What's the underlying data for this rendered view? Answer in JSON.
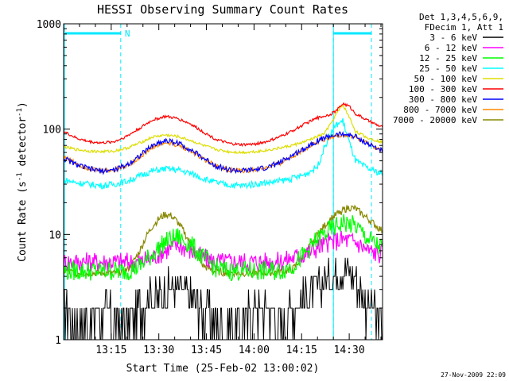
{
  "chart_data": {
    "type": "line",
    "title": "HESSI Observing Summary Count Rates",
    "xlabel": "Start Time (25-Feb-02 13:00:02)",
    "ylabel_main": "Count Rate (s",
    "ylabel_sup1": "-1",
    "ylabel_mid": " detector",
    "ylabel_sup2": "-1",
    "ylabel_end": ")",
    "y_scale": "log",
    "ylim": [
      1,
      1000
    ],
    "xlim_minutes": [
      0,
      100.5
    ],
    "x_ticks": [
      {
        "minute": 15,
        "label": "13:15"
      },
      {
        "minute": 30,
        "label": "13:30"
      },
      {
        "minute": 45,
        "label": "13:45"
      },
      {
        "minute": 60,
        "label": "14:00"
      },
      {
        "minute": 75,
        "label": "14:15"
      },
      {
        "minute": 90,
        "label": "14:30"
      }
    ],
    "y_ticks": [
      {
        "value": 1,
        "label": "1"
      },
      {
        "value": 10,
        "label": "10"
      },
      {
        "value": 100,
        "label": "100"
      },
      {
        "value": 1000,
        "label": "1000"
      }
    ],
    "legend_header": [
      "Det 1,3,4,5,6,9,",
      "FDecim 1, Att 1"
    ],
    "legend_placement": "right, outside plot",
    "series": [
      {
        "name": "3 - 6 keV",
        "color": "#000000",
        "x": [
          0,
          4,
          8,
          12,
          16,
          20,
          24,
          28,
          32,
          36,
          40,
          44,
          48,
          52,
          56,
          60,
          64,
          68,
          72,
          76,
          80,
          84,
          88,
          92,
          96,
          100
        ],
        "y": [
          2,
          1.5,
          1.5,
          2,
          1.5,
          1.5,
          2,
          2.5,
          3,
          3,
          2.5,
          2,
          1.5,
          1.5,
          1.5,
          2,
          2,
          1.5,
          2,
          2.5,
          3,
          4,
          5,
          4,
          2,
          1.5
        ]
      },
      {
        "name": "6 - 12 keV",
        "color": "#ff00ff",
        "x": [
          0,
          4,
          8,
          12,
          16,
          20,
          24,
          28,
          32,
          36,
          40,
          44,
          48,
          52,
          56,
          60,
          64,
          68,
          72,
          76,
          80,
          84,
          88,
          92,
          96,
          100
        ],
        "y": [
          5.5,
          5.5,
          5.5,
          5.5,
          5.5,
          5.5,
          5.5,
          6,
          7,
          8,
          7,
          6,
          5.5,
          5.5,
          5.5,
          5.5,
          5.5,
          5.5,
          6,
          6.5,
          7.5,
          8.5,
          9,
          8.5,
          7,
          6.5
        ]
      },
      {
        "name": "12 - 25 keV",
        "color": "#00ff00",
        "x": [
          0,
          4,
          8,
          12,
          16,
          20,
          24,
          28,
          32,
          36,
          40,
          44,
          48,
          52,
          56,
          60,
          64,
          68,
          72,
          76,
          80,
          84,
          88,
          92,
          96,
          100
        ],
        "y": [
          4.5,
          4.5,
          4.5,
          4.5,
          4.5,
          4.5,
          5,
          6.5,
          8.5,
          9.5,
          8,
          6,
          4.8,
          4.5,
          4.5,
          4.5,
          4.5,
          4.5,
          5,
          6.5,
          9,
          11,
          13,
          12,
          9,
          7.5
        ]
      },
      {
        "name": "25 - 50 keV",
        "color": "#00ffff",
        "x": [
          0,
          4,
          8,
          12,
          16,
          20,
          24,
          28,
          32,
          36,
          40,
          44,
          48,
          52,
          56,
          60,
          64,
          68,
          72,
          76,
          80,
          82,
          84,
          86,
          88,
          90,
          92,
          96,
          100
        ],
        "y": [
          33,
          31,
          30,
          29,
          30,
          32,
          36,
          40,
          42,
          41,
          38,
          34,
          31,
          29.5,
          29,
          30,
          31,
          32,
          34,
          37,
          44,
          65,
          90,
          110,
          120,
          75,
          50,
          42,
          38
        ]
      },
      {
        "name": "50 - 100 keV",
        "color": "#dddd00",
        "x": [
          0,
          4,
          8,
          12,
          16,
          20,
          24,
          28,
          32,
          36,
          40,
          44,
          48,
          52,
          56,
          60,
          64,
          68,
          72,
          76,
          80,
          82,
          84,
          86,
          88,
          90,
          92,
          96,
          100
        ],
        "y": [
          68,
          64,
          62,
          61,
          62,
          66,
          74,
          84,
          88,
          85,
          78,
          70,
          64,
          61,
          60,
          61,
          63,
          66,
          70,
          76,
          85,
          90,
          110,
          140,
          170,
          130,
          95,
          82,
          76
        ]
      },
      {
        "name": "100 - 300 keV",
        "color": "#ff0000",
        "x": [
          0,
          4,
          8,
          12,
          16,
          20,
          24,
          28,
          32,
          36,
          40,
          44,
          48,
          52,
          56,
          60,
          64,
          68,
          72,
          76,
          80,
          84,
          86,
          88,
          90,
          92,
          96,
          100
        ],
        "y": [
          95,
          82,
          76,
          74,
          76,
          86,
          102,
          122,
          132,
          126,
          112,
          94,
          80,
          73,
          71,
          72,
          76,
          84,
          96,
          112,
          128,
          138,
          150,
          175,
          165,
          140,
          120,
          105
        ]
      },
      {
        "name": "300 - 800 keV",
        "color": "#0000ff",
        "x": [
          0,
          4,
          8,
          12,
          16,
          20,
          24,
          28,
          32,
          36,
          40,
          44,
          48,
          52,
          56,
          60,
          64,
          68,
          72,
          76,
          80,
          84,
          88,
          92,
          96,
          100
        ],
        "y": [
          53,
          46,
          42,
          40,
          41,
          46,
          56,
          70,
          78,
          74,
          64,
          53,
          45,
          41,
          40,
          41,
          43,
          48,
          56,
          66,
          78,
          86,
          90,
          85,
          72,
          63
        ]
      },
      {
        "name": "800 - 7000 keV",
        "color": "#ff8800",
        "x": [
          0,
          4,
          8,
          12,
          16,
          20,
          24,
          28,
          32,
          36,
          40,
          44,
          48,
          52,
          56,
          60,
          64,
          68,
          72,
          76,
          80,
          84,
          88,
          92,
          96,
          100
        ],
        "y": [
          55,
          47,
          42,
          40,
          41,
          45,
          54,
          67,
          74,
          71,
          62,
          52,
          45,
          41,
          40,
          41,
          43,
          47,
          55,
          64,
          76,
          84,
          88,
          83,
          72,
          63
        ]
      },
      {
        "name": "7000 - 20000 keV",
        "color": "#888800",
        "x": [
          0,
          4,
          8,
          12,
          16,
          20,
          22,
          24,
          26,
          28,
          30,
          32,
          34,
          36,
          38,
          40,
          42,
          44,
          48,
          52,
          56,
          60,
          64,
          68,
          72,
          76,
          80,
          84,
          88,
          90,
          92,
          96,
          100
        ],
        "y": [
          4.5,
          4.3,
          4.3,
          4.3,
          4.3,
          4.6,
          5.5,
          7,
          9.5,
          12,
          14,
          15.5,
          15,
          13,
          10.5,
          8,
          6.2,
          5,
          4.4,
          4.3,
          4.3,
          4.3,
          4.3,
          4.4,
          4.6,
          6.5,
          10,
          14,
          17,
          18,
          17.5,
          14,
          11
        ]
      }
    ],
    "annotations": [
      {
        "label": "N",
        "x_minute": 18
      },
      {
        "label": "",
        "x_minute": 85
      }
    ],
    "annotation_bar_color": "#00e8ff"
  },
  "footer": {
    "timestamp": "27-Nov-2009 22:09"
  }
}
